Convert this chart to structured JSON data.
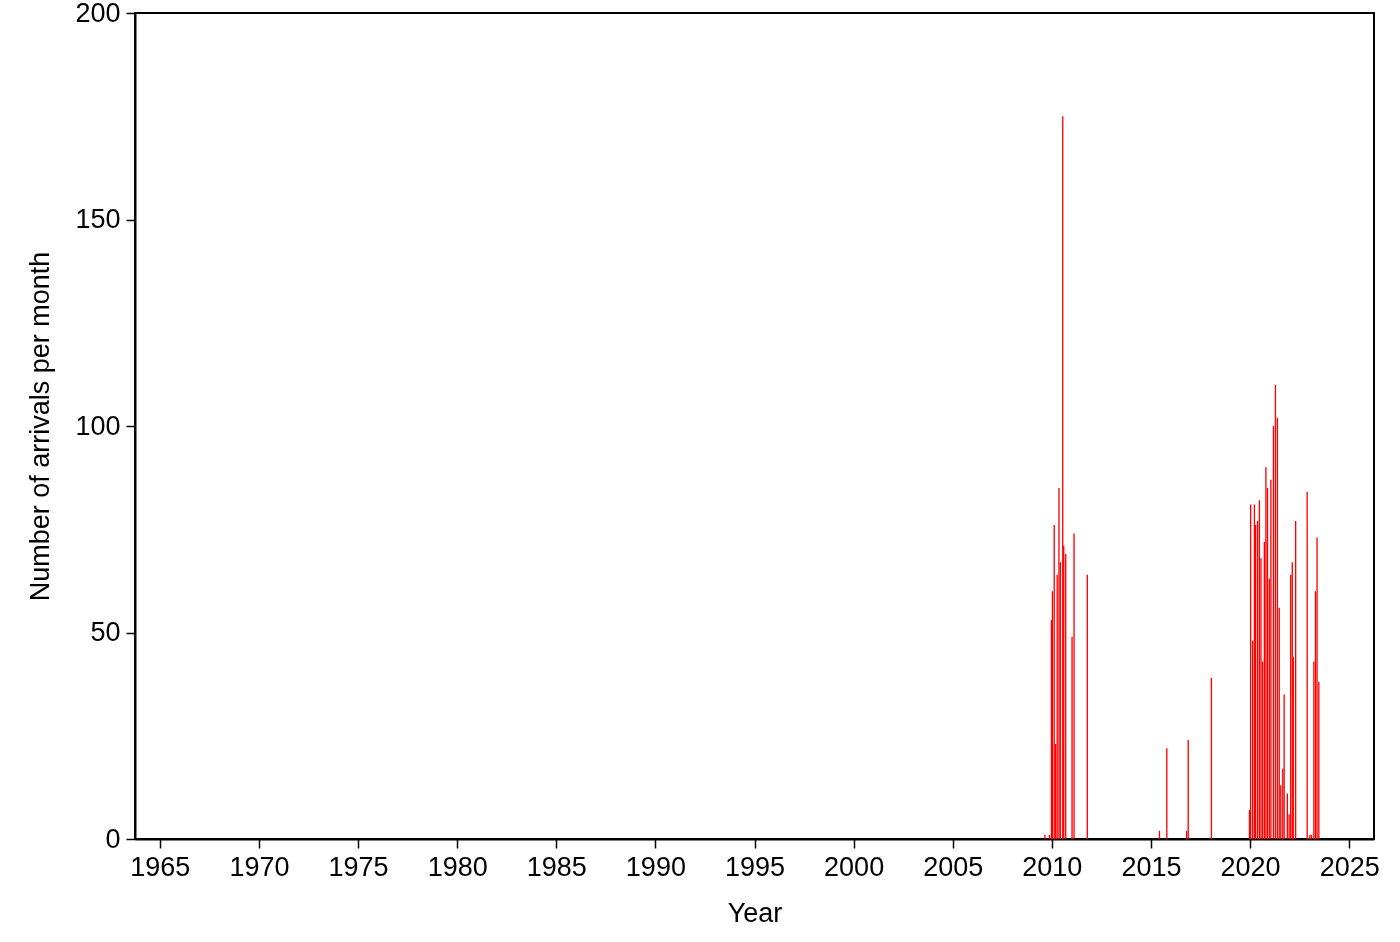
{
  "chart_data": {
    "type": "bar",
    "xlabel": "Year",
    "ylabel": "Number of arrivals per month",
    "x": [
      2009.65,
      2009.88,
      2009.98,
      2010.03,
      2010.12,
      2010.19,
      2010.27,
      2010.36,
      2010.43,
      2010.55,
      2010.6,
      2010.7,
      2011.02,
      2011.12,
      2011.79,
      2015.43,
      2015.8,
      2016.8,
      2016.88,
      2018.05,
      2019.97,
      2020.03,
      2020.13,
      2020.22,
      2020.28,
      2020.38,
      2020.47,
      2020.55,
      2020.63,
      2020.72,
      2020.8,
      2020.88,
      2020.97,
      2021.05,
      2021.18,
      2021.28,
      2021.38,
      2021.47,
      2021.55,
      2021.65,
      2021.72,
      2021.88,
      2021.97,
      2022.05,
      2022.13,
      2022.18,
      2022.3,
      2022.88,
      2023.02,
      2023.1,
      2023.22,
      2023.3,
      2023.38,
      2023.47
    ],
    "values": [
      1,
      1,
      53,
      60,
      76,
      23,
      64,
      85,
      67,
      175,
      71,
      69,
      49,
      74,
      64,
      2,
      22,
      2,
      24,
      39,
      7,
      81,
      48,
      81,
      76,
      77,
      82,
      68,
      43,
      72,
      90,
      85,
      63,
      87,
      100,
      110,
      102,
      56,
      13,
      17,
      35,
      11,
      6,
      64,
      67,
      44,
      77,
      84,
      1,
      1,
      43,
      60,
      73,
      38
    ],
    "color": "#ff0000",
    "xlim": [
      1964,
      2026
    ],
    "xticks": [
      1965,
      1970,
      1975,
      1980,
      1985,
      1990,
      1995,
      2000,
      2005,
      2010,
      2015,
      2020,
      2025
    ],
    "ylim": [
      0,
      200
    ],
    "yticks": [
      0,
      50,
      100,
      150,
      200
    ],
    "grid": false
  }
}
